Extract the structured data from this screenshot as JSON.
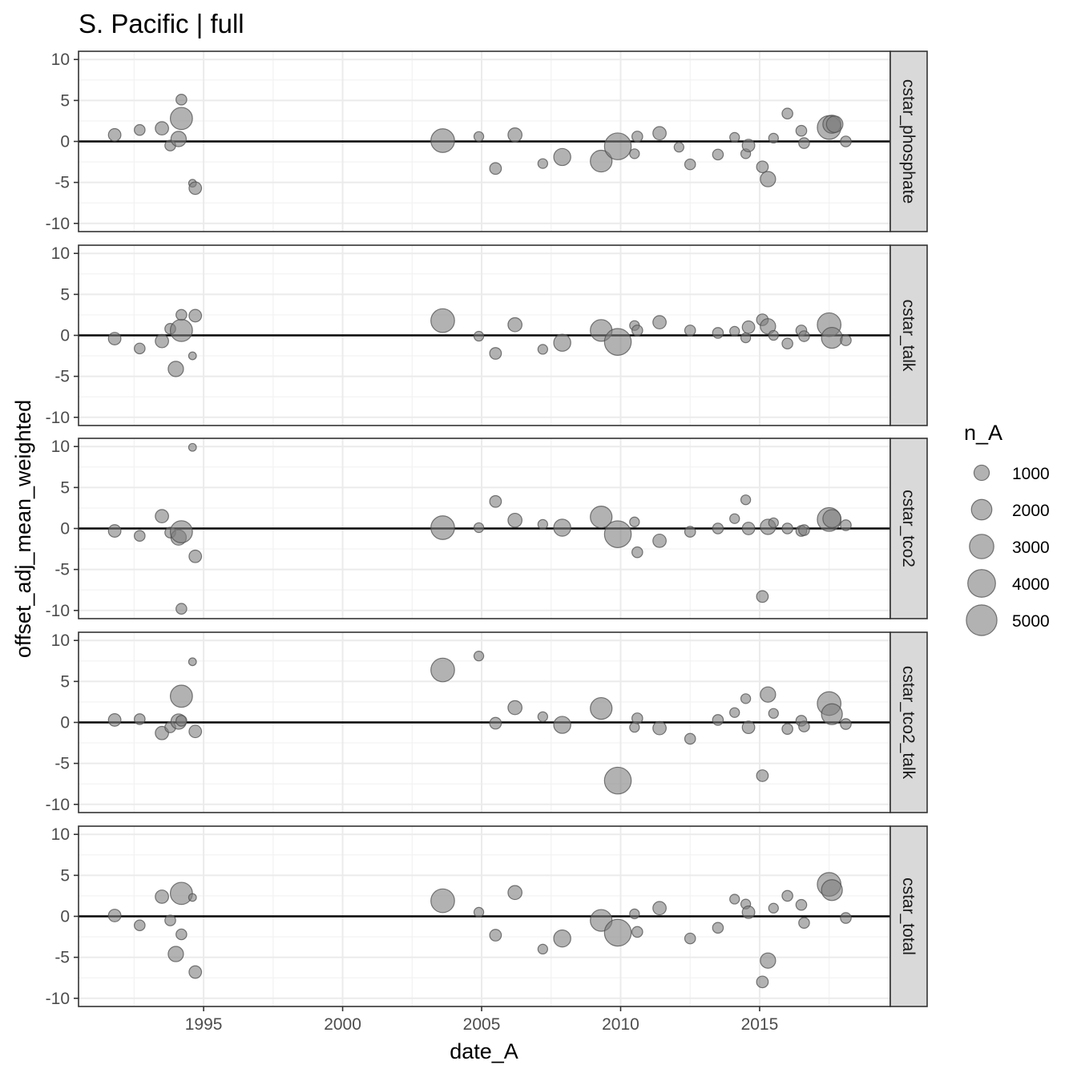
{
  "chart_data": {
    "type": "scatter",
    "title": "S. Pacific | full",
    "xlabel": "date_A",
    "ylabel": "offset_adj_mean_weighted",
    "xlim": [
      1990.5,
      2019.7
    ],
    "ylim": [
      -11,
      11
    ],
    "x_ticks": [
      1995,
      2000,
      2005,
      2010,
      2015
    ],
    "y_ticks": [
      10,
      5,
      0,
      -5,
      -10
    ],
    "reference_line_y": 0,
    "point_color": "#7f7f7f",
    "point_opacity": 0.6,
    "point_stroke": "#4d4d4d",
    "size_legend": {
      "title": "n_A",
      "values": [
        1000,
        2000,
        3000,
        4000,
        5000
      ]
    },
    "facets": [
      {
        "label": "cstar_phosphate",
        "points": [
          {
            "x": 1991.8,
            "y": 0.8,
            "n": 600
          },
          {
            "x": 1992.7,
            "y": 1.4,
            "n": 400
          },
          {
            "x": 1993.5,
            "y": 1.6,
            "n": 700
          },
          {
            "x": 1993.8,
            "y": -0.5,
            "n": 400
          },
          {
            "x": 1994.1,
            "y": 0.3,
            "n": 1000
          },
          {
            "x": 1994.2,
            "y": 5.1,
            "n": 400
          },
          {
            "x": 1994.2,
            "y": 2.8,
            "n": 2400
          },
          {
            "x": 1994.6,
            "y": -5.1,
            "n": 150
          },
          {
            "x": 1994.7,
            "y": -5.7,
            "n": 600
          },
          {
            "x": 2003.6,
            "y": 0.1,
            "n": 2800
          },
          {
            "x": 2004.9,
            "y": 0.6,
            "n": 300
          },
          {
            "x": 2005.5,
            "y": -3.3,
            "n": 500
          },
          {
            "x": 2006.2,
            "y": 0.8,
            "n": 800
          },
          {
            "x": 2007.2,
            "y": -2.7,
            "n": 300
          },
          {
            "x": 2007.9,
            "y": -1.9,
            "n": 1300
          },
          {
            "x": 2009.3,
            "y": -2.4,
            "n": 2300
          },
          {
            "x": 2009.9,
            "y": -0.6,
            "n": 3700
          },
          {
            "x": 2010.5,
            "y": -1.5,
            "n": 300
          },
          {
            "x": 2010.6,
            "y": 0.6,
            "n": 400
          },
          {
            "x": 2011.4,
            "y": 1.0,
            "n": 700
          },
          {
            "x": 2012.1,
            "y": -0.7,
            "n": 300
          },
          {
            "x": 2012.5,
            "y": -2.8,
            "n": 400
          },
          {
            "x": 2013.5,
            "y": -1.6,
            "n": 400
          },
          {
            "x": 2014.1,
            "y": 0.5,
            "n": 300
          },
          {
            "x": 2014.5,
            "y": -1.5,
            "n": 300
          },
          {
            "x": 2014.6,
            "y": -0.5,
            "n": 600
          },
          {
            "x": 2015.1,
            "y": -3.1,
            "n": 500
          },
          {
            "x": 2015.3,
            "y": -4.6,
            "n": 1000
          },
          {
            "x": 2015.5,
            "y": 0.4,
            "n": 300
          },
          {
            "x": 2016.0,
            "y": 3.4,
            "n": 400
          },
          {
            "x": 2016.5,
            "y": 1.3,
            "n": 400
          },
          {
            "x": 2016.6,
            "y": -0.2,
            "n": 400
          },
          {
            "x": 2017.5,
            "y": 1.7,
            "n": 2800
          },
          {
            "x": 2017.6,
            "y": 2.1,
            "n": 1500
          },
          {
            "x": 2017.7,
            "y": 2.1,
            "n": 1200
          },
          {
            "x": 2018.1,
            "y": 0.0,
            "n": 400
          }
        ]
      },
      {
        "label": "cstar_talk",
        "points": [
          {
            "x": 1991.8,
            "y": -0.4,
            "n": 600
          },
          {
            "x": 1992.7,
            "y": -1.6,
            "n": 400
          },
          {
            "x": 1993.5,
            "y": -0.7,
            "n": 700
          },
          {
            "x": 1993.8,
            "y": 0.8,
            "n": 400
          },
          {
            "x": 1994.0,
            "y": -4.1,
            "n": 1000
          },
          {
            "x": 1994.2,
            "y": 2.5,
            "n": 400
          },
          {
            "x": 1994.2,
            "y": 0.6,
            "n": 2400
          },
          {
            "x": 1994.6,
            "y": -2.5,
            "n": 150
          },
          {
            "x": 1994.7,
            "y": 2.4,
            "n": 600
          },
          {
            "x": 2003.6,
            "y": 1.8,
            "n": 2800
          },
          {
            "x": 2004.9,
            "y": -0.1,
            "n": 300
          },
          {
            "x": 2005.5,
            "y": -2.2,
            "n": 500
          },
          {
            "x": 2006.2,
            "y": 1.3,
            "n": 800
          },
          {
            "x": 2007.2,
            "y": -1.7,
            "n": 300
          },
          {
            "x": 2007.9,
            "y": -0.9,
            "n": 1300
          },
          {
            "x": 2009.3,
            "y": 0.6,
            "n": 2300
          },
          {
            "x": 2009.9,
            "y": -0.8,
            "n": 3700
          },
          {
            "x": 2010.5,
            "y": 1.2,
            "n": 300
          },
          {
            "x": 2010.6,
            "y": 0.6,
            "n": 400
          },
          {
            "x": 2011.4,
            "y": 1.6,
            "n": 700
          },
          {
            "x": 2012.5,
            "y": 0.6,
            "n": 400
          },
          {
            "x": 2013.5,
            "y": 0.3,
            "n": 400
          },
          {
            "x": 2014.1,
            "y": 0.5,
            "n": 300
          },
          {
            "x": 2014.5,
            "y": -0.3,
            "n": 300
          },
          {
            "x": 2014.6,
            "y": 1.0,
            "n": 600
          },
          {
            "x": 2015.1,
            "y": 1.9,
            "n": 500
          },
          {
            "x": 2015.3,
            "y": 1.1,
            "n": 1000
          },
          {
            "x": 2015.5,
            "y": 0.0,
            "n": 300
          },
          {
            "x": 2016.0,
            "y": -1.0,
            "n": 400
          },
          {
            "x": 2016.5,
            "y": 0.6,
            "n": 400
          },
          {
            "x": 2016.6,
            "y": -0.1,
            "n": 400
          },
          {
            "x": 2017.5,
            "y": 1.3,
            "n": 2800
          },
          {
            "x": 2017.6,
            "y": -0.3,
            "n": 2100
          },
          {
            "x": 2018.1,
            "y": -0.6,
            "n": 400
          }
        ]
      },
      {
        "label": "cstar_tco2",
        "points": [
          {
            "x": 1991.8,
            "y": -0.3,
            "n": 600
          },
          {
            "x": 1992.7,
            "y": -0.9,
            "n": 400
          },
          {
            "x": 1993.5,
            "y": 1.5,
            "n": 700
          },
          {
            "x": 1993.8,
            "y": -0.5,
            "n": 400
          },
          {
            "x": 1994.1,
            "y": -1.1,
            "n": 1000
          },
          {
            "x": 1994.2,
            "y": -9.8,
            "n": 400
          },
          {
            "x": 1994.2,
            "y": -0.4,
            "n": 2400
          },
          {
            "x": 1994.6,
            "y": 9.9,
            "n": 150
          },
          {
            "x": 1994.7,
            "y": -3.4,
            "n": 600
          },
          {
            "x": 2003.6,
            "y": 0.1,
            "n": 2800
          },
          {
            "x": 2004.9,
            "y": 0.1,
            "n": 300
          },
          {
            "x": 2005.5,
            "y": 3.3,
            "n": 500
          },
          {
            "x": 2006.2,
            "y": 1.0,
            "n": 800
          },
          {
            "x": 2007.2,
            "y": 0.5,
            "n": 300
          },
          {
            "x": 2007.9,
            "y": 0.1,
            "n": 1300
          },
          {
            "x": 2009.3,
            "y": 1.4,
            "n": 2300
          },
          {
            "x": 2009.9,
            "y": -0.7,
            "n": 3700
          },
          {
            "x": 2010.5,
            "y": 0.8,
            "n": 300
          },
          {
            "x": 2010.6,
            "y": -2.9,
            "n": 400
          },
          {
            "x": 2011.4,
            "y": -1.5,
            "n": 700
          },
          {
            "x": 2012.5,
            "y": -0.4,
            "n": 400
          },
          {
            "x": 2013.5,
            "y": 0.0,
            "n": 400
          },
          {
            "x": 2014.1,
            "y": 1.2,
            "n": 300
          },
          {
            "x": 2014.5,
            "y": 3.5,
            "n": 300
          },
          {
            "x": 2014.6,
            "y": 0.0,
            "n": 600
          },
          {
            "x": 2015.1,
            "y": -8.3,
            "n": 500
          },
          {
            "x": 2015.3,
            "y": 0.2,
            "n": 1000
          },
          {
            "x": 2015.5,
            "y": 0.7,
            "n": 300
          },
          {
            "x": 2016.0,
            "y": 0.0,
            "n": 400
          },
          {
            "x": 2016.5,
            "y": -0.3,
            "n": 400
          },
          {
            "x": 2016.6,
            "y": -0.2,
            "n": 400
          },
          {
            "x": 2017.5,
            "y": 1.1,
            "n": 2800
          },
          {
            "x": 2017.6,
            "y": 1.2,
            "n": 1500
          },
          {
            "x": 2018.1,
            "y": 0.4,
            "n": 400
          }
        ]
      },
      {
        "label": "cstar_tco2_talk",
        "points": [
          {
            "x": 1991.8,
            "y": 0.3,
            "n": 600
          },
          {
            "x": 1992.7,
            "y": 0.4,
            "n": 400
          },
          {
            "x": 1993.5,
            "y": -1.3,
            "n": 700
          },
          {
            "x": 1993.8,
            "y": -0.6,
            "n": 400
          },
          {
            "x": 1994.1,
            "y": 0.1,
            "n": 1000
          },
          {
            "x": 1994.2,
            "y": 0.2,
            "n": 400
          },
          {
            "x": 1994.2,
            "y": 3.2,
            "n": 2400
          },
          {
            "x": 1994.6,
            "y": 7.4,
            "n": 150
          },
          {
            "x": 1994.7,
            "y": -1.1,
            "n": 600
          },
          {
            "x": 2003.6,
            "y": 6.4,
            "n": 2800
          },
          {
            "x": 2004.9,
            "y": 8.1,
            "n": 300
          },
          {
            "x": 2005.5,
            "y": -0.1,
            "n": 500
          },
          {
            "x": 2006.2,
            "y": 1.8,
            "n": 800
          },
          {
            "x": 2007.2,
            "y": 0.7,
            "n": 300
          },
          {
            "x": 2007.9,
            "y": -0.3,
            "n": 1300
          },
          {
            "x": 2009.3,
            "y": 1.7,
            "n": 2300
          },
          {
            "x": 2009.9,
            "y": -7.1,
            "n": 3700
          },
          {
            "x": 2010.5,
            "y": -0.6,
            "n": 300
          },
          {
            "x": 2010.6,
            "y": 0.5,
            "n": 400
          },
          {
            "x": 2011.4,
            "y": -0.7,
            "n": 700
          },
          {
            "x": 2012.5,
            "y": -2.0,
            "n": 400
          },
          {
            "x": 2013.5,
            "y": 0.3,
            "n": 400
          },
          {
            "x": 2014.1,
            "y": 1.2,
            "n": 300
          },
          {
            "x": 2014.5,
            "y": 2.9,
            "n": 300
          },
          {
            "x": 2014.6,
            "y": -0.6,
            "n": 600
          },
          {
            "x": 2015.1,
            "y": -6.5,
            "n": 500
          },
          {
            "x": 2015.3,
            "y": 3.4,
            "n": 1000
          },
          {
            "x": 2015.5,
            "y": 1.1,
            "n": 300
          },
          {
            "x": 2016.0,
            "y": -0.8,
            "n": 400
          },
          {
            "x": 2016.5,
            "y": 0.2,
            "n": 400
          },
          {
            "x": 2016.6,
            "y": -0.5,
            "n": 400
          },
          {
            "x": 2017.5,
            "y": 2.3,
            "n": 2800
          },
          {
            "x": 2017.6,
            "y": 1.0,
            "n": 2100
          },
          {
            "x": 2018.1,
            "y": -0.2,
            "n": 400
          }
        ]
      },
      {
        "label": "cstar_total",
        "points": [
          {
            "x": 1991.8,
            "y": 0.1,
            "n": 600
          },
          {
            "x": 1992.7,
            "y": -1.1,
            "n": 400
          },
          {
            "x": 1993.5,
            "y": 2.4,
            "n": 700
          },
          {
            "x": 1993.8,
            "y": -0.5,
            "n": 400
          },
          {
            "x": 1994.0,
            "y": -4.6,
            "n": 1000
          },
          {
            "x": 1994.2,
            "y": -2.2,
            "n": 400
          },
          {
            "x": 1994.2,
            "y": 2.8,
            "n": 2400
          },
          {
            "x": 1994.6,
            "y": 2.3,
            "n": 150
          },
          {
            "x": 1994.7,
            "y": -6.8,
            "n": 600
          },
          {
            "x": 2003.6,
            "y": 1.9,
            "n": 2800
          },
          {
            "x": 2004.9,
            "y": 0.5,
            "n": 300
          },
          {
            "x": 2005.5,
            "y": -2.3,
            "n": 500
          },
          {
            "x": 2006.2,
            "y": 2.9,
            "n": 800
          },
          {
            "x": 2007.2,
            "y": -4.0,
            "n": 300
          },
          {
            "x": 2007.9,
            "y": -2.7,
            "n": 1300
          },
          {
            "x": 2009.3,
            "y": -0.5,
            "n": 2300
          },
          {
            "x": 2009.9,
            "y": -2.0,
            "n": 3700
          },
          {
            "x": 2010.5,
            "y": 0.3,
            "n": 300
          },
          {
            "x": 2010.6,
            "y": -1.9,
            "n": 400
          },
          {
            "x": 2011.4,
            "y": 1.0,
            "n": 700
          },
          {
            "x": 2012.5,
            "y": -2.7,
            "n": 400
          },
          {
            "x": 2013.5,
            "y": -1.4,
            "n": 400
          },
          {
            "x": 2014.1,
            "y": 2.1,
            "n": 300
          },
          {
            "x": 2014.5,
            "y": 1.5,
            "n": 300
          },
          {
            "x": 2014.6,
            "y": 0.5,
            "n": 600
          },
          {
            "x": 2015.1,
            "y": -8.0,
            "n": 500
          },
          {
            "x": 2015.3,
            "y": -5.4,
            "n": 1000
          },
          {
            "x": 2015.5,
            "y": 1.0,
            "n": 300
          },
          {
            "x": 2016.0,
            "y": 2.5,
            "n": 400
          },
          {
            "x": 2016.5,
            "y": 1.4,
            "n": 400
          },
          {
            "x": 2016.6,
            "y": -0.8,
            "n": 400
          },
          {
            "x": 2017.5,
            "y": 3.9,
            "n": 2800
          },
          {
            "x": 2017.6,
            "y": 3.2,
            "n": 2100
          },
          {
            "x": 2018.1,
            "y": -0.2,
            "n": 400
          }
        ]
      }
    ]
  }
}
